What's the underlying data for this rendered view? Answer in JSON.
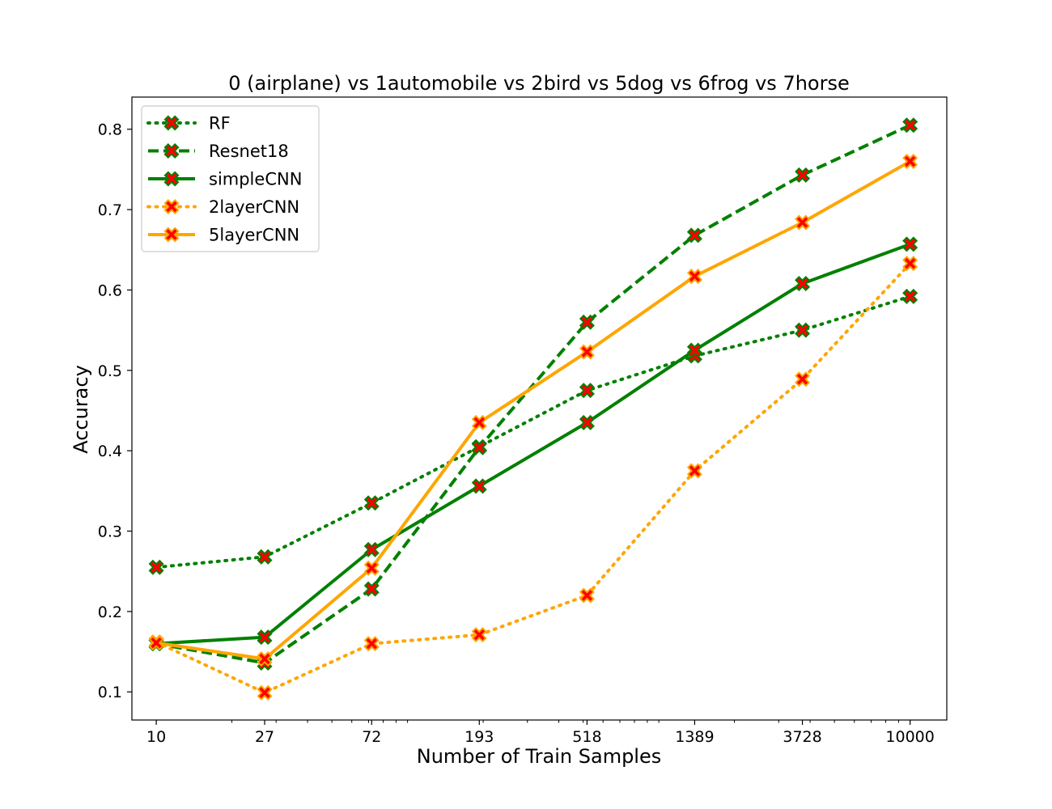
{
  "chart_data": {
    "type": "line",
    "title": "0 (airplane)  vs 1automobile vs 2bird vs 5dog vs 6frog vs 7horse",
    "xlabel": "Number of Train Samples",
    "ylabel": "Accuracy",
    "x_scale": "log",
    "x": [
      10,
      27,
      72,
      193,
      518,
      1389,
      3728,
      10000
    ],
    "x_tick_labels": [
      "10",
      "27",
      "72",
      "193",
      "518",
      "1389",
      "3728",
      "10000"
    ],
    "xlim": [
      8,
      14000
    ],
    "ylim": [
      0.065,
      0.84
    ],
    "y_ticks": [
      0.1,
      0.2,
      0.3,
      0.4,
      0.5,
      0.6,
      0.7,
      0.8
    ],
    "y_tick_labels": [
      "0.1",
      "0.2",
      "0.3",
      "0.4",
      "0.5",
      "0.6",
      "0.7",
      "0.8"
    ],
    "grid": false,
    "legend_position": "top-left",
    "marker": "x-filled",
    "marker_face_color": "#ff0000",
    "series": [
      {
        "name": "RF",
        "color": "#008000",
        "style": "dotted",
        "values": [
          0.255,
          0.268,
          0.335,
          0.405,
          0.475,
          0.518,
          0.55,
          0.592
        ]
      },
      {
        "name": "Resnet18",
        "color": "#008000",
        "style": "dashed",
        "values": [
          0.16,
          0.136,
          0.228,
          0.404,
          0.56,
          0.668,
          0.743,
          0.805
        ]
      },
      {
        "name": "simpleCNN",
        "color": "#008000",
        "style": "solid",
        "values": [
          0.16,
          0.168,
          0.277,
          0.356,
          0.435,
          0.525,
          0.608,
          0.657
        ]
      },
      {
        "name": "2layerCNN",
        "color": "#ffa500",
        "style": "dotted",
        "values": [
          0.162,
          0.099,
          0.16,
          0.171,
          0.22,
          0.375,
          0.489,
          0.633
        ]
      },
      {
        "name": "5layerCNN",
        "color": "#ffa500",
        "style": "solid",
        "values": [
          0.161,
          0.141,
          0.254,
          0.435,
          0.523,
          0.617,
          0.684,
          0.76
        ]
      }
    ]
  }
}
